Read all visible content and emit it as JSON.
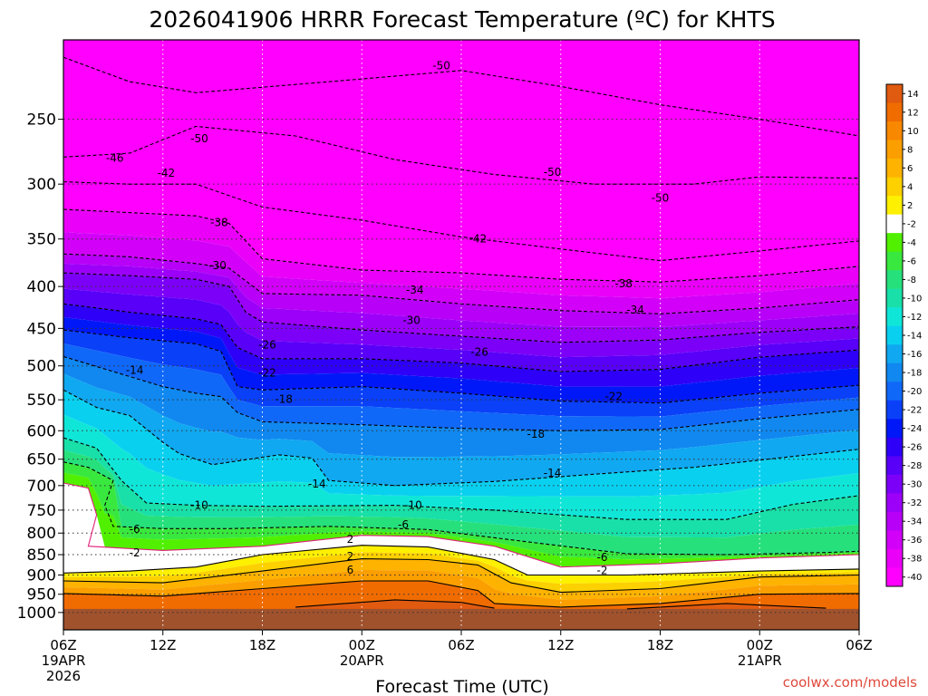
{
  "chart_data": {
    "type": "heatmap",
    "title": "2026041906 HRRR Forecast Temperature (ºC) for KHTS",
    "xlabel": "Forecast Time (UTC)",
    "ylabel": "",
    "y_scale": "log",
    "ylim": [
      1050,
      200
    ],
    "xlim_hours": [
      0,
      48
    ],
    "x_ticks": [
      {
        "hour": 0,
        "label": "06Z",
        "date1": "19APR",
        "date2": "2026"
      },
      {
        "hour": 6,
        "label": "12Z"
      },
      {
        "hour": 12,
        "label": "18Z"
      },
      {
        "hour": 18,
        "label": "00Z",
        "date1": "20APR"
      },
      {
        "hour": 24,
        "label": "06Z"
      },
      {
        "hour": 30,
        "label": "12Z"
      },
      {
        "hour": 36,
        "label": "18Z"
      },
      {
        "hour": 42,
        "label": "00Z",
        "date1": "21APR"
      },
      {
        "hour": 48,
        "label": "06Z"
      }
    ],
    "y_ticks": [
      250,
      300,
      350,
      400,
      450,
      500,
      550,
      600,
      650,
      700,
      750,
      800,
      850,
      900,
      950,
      1000
    ],
    "grid": true,
    "ground_level_hpa": 990,
    "colorbar": {
      "placement": "right",
      "labels": [
        "14",
        "12",
        "10",
        "8",
        "6",
        "4",
        "2",
        "-2",
        "-4",
        "-6",
        "-8",
        "-10",
        "-12",
        "-14",
        "-16",
        "-18",
        "-20",
        "-22",
        "-24",
        "-26",
        "-28",
        "-30",
        "-32",
        "-34",
        "-36",
        "-38",
        "-40"
      ],
      "colors": [
        "#e05a10",
        "#f06c00",
        "#f88800",
        "#fb9e00",
        "#fdb300",
        "#fdd000",
        "#fdf000",
        "#ffffff",
        "#50f000",
        "#39e83e",
        "#26e07c",
        "#18e0a8",
        "#10e6d8",
        "#0ad0f0",
        "#10a8f0",
        "#1088f0",
        "#1068f8",
        "#0a40f8",
        "#0018f8",
        "#2e00f8",
        "#5800f8",
        "#7c00f8",
        "#9c00f8",
        "#b800f8",
        "#d200f8",
        "#ea00f8",
        "#ff00ff"
      ]
    },
    "isotherms": [
      {
        "value": -50,
        "points": [
          [
            0,
            210
          ],
          [
            4,
            225
          ],
          [
            8,
            232
          ],
          [
            16,
            225
          ],
          [
            24,
            218
          ],
          [
            30,
            228
          ],
          [
            36,
            240
          ],
          [
            42,
            250
          ],
          [
            48,
            262
          ]
        ]
      },
      {
        "value": -46,
        "points": [
          [
            0,
            278
          ],
          [
            4,
            275
          ],
          [
            8,
            255
          ],
          [
            14,
            262
          ],
          [
            20,
            280
          ],
          [
            26,
            292
          ],
          [
            32,
            300
          ],
          [
            38,
            300
          ],
          [
            42,
            294
          ],
          [
            48,
            295
          ]
        ]
      },
      {
        "value": -42,
        "points": [
          [
            0,
            298
          ],
          [
            4,
            300
          ],
          [
            8,
            300
          ],
          [
            12,
            320
          ],
          [
            18,
            332
          ],
          [
            24,
            348
          ],
          [
            30,
            360
          ],
          [
            36,
            372
          ],
          [
            42,
            362
          ],
          [
            48,
            352
          ]
        ]
      },
      {
        "value": -38,
        "points": [
          [
            0,
            322
          ],
          [
            4,
            325
          ],
          [
            8,
            328
          ],
          [
            10,
            335
          ],
          [
            12,
            370
          ],
          [
            18,
            382
          ],
          [
            24,
            385
          ],
          [
            30,
            392
          ],
          [
            36,
            395
          ],
          [
            42,
            388
          ],
          [
            48,
            378
          ]
        ]
      },
      {
        "value": -34,
        "points": [
          [
            0,
            365
          ],
          [
            4,
            368
          ],
          [
            8,
            375
          ],
          [
            10,
            380
          ],
          [
            12,
            408
          ],
          [
            18,
            410
          ],
          [
            24,
            420
          ],
          [
            30,
            428
          ],
          [
            36,
            432
          ],
          [
            42,
            425
          ],
          [
            48,
            415
          ]
        ]
      },
      {
        "value": -30,
        "points": [
          [
            0,
            385
          ],
          [
            4,
            388
          ],
          [
            8,
            392
          ],
          [
            10,
            400
          ],
          [
            11,
            430
          ],
          [
            12,
            442
          ],
          [
            18,
            452
          ],
          [
            24,
            460
          ],
          [
            30,
            468
          ],
          [
            36,
            465
          ],
          [
            42,
            455
          ],
          [
            48,
            448
          ]
        ]
      },
      {
        "value": -26,
        "points": [
          [
            0,
            420
          ],
          [
            4,
            430
          ],
          [
            8,
            438
          ],
          [
            9.5,
            445
          ],
          [
            10.5,
            475
          ],
          [
            12,
            490
          ],
          [
            18,
            490
          ],
          [
            24,
            496
          ],
          [
            30,
            508
          ],
          [
            36,
            505
          ],
          [
            42,
            488
          ],
          [
            48,
            478
          ]
        ]
      },
      {
        "value": -22,
        "points": [
          [
            0,
            452
          ],
          [
            4,
            462
          ],
          [
            8,
            470
          ],
          [
            9.5,
            480
          ],
          [
            10.5,
            530
          ],
          [
            12,
            535
          ],
          [
            18,
            530
          ],
          [
            24,
            540
          ],
          [
            30,
            552
          ],
          [
            36,
            555
          ],
          [
            42,
            540
          ],
          [
            48,
            528
          ]
        ]
      },
      {
        "value": -18,
        "points": [
          [
            0,
            487
          ],
          [
            3,
            508
          ],
          [
            6,
            530
          ],
          [
            8,
            540
          ],
          [
            9.5,
            545
          ],
          [
            10.5,
            570
          ],
          [
            12,
            585
          ],
          [
            18,
            590
          ],
          [
            24,
            596
          ],
          [
            30,
            600
          ],
          [
            36,
            598
          ],
          [
            42,
            580
          ],
          [
            48,
            565
          ]
        ]
      },
      {
        "value": -14,
        "points": [
          [
            0,
            535
          ],
          [
            2,
            562
          ],
          [
            4,
            575
          ],
          [
            6,
            620
          ],
          [
            7,
            640
          ],
          [
            9,
            660
          ],
          [
            13,
            642
          ],
          [
            15,
            648
          ],
          [
            16,
            690
          ],
          [
            20,
            700
          ],
          [
            26,
            692
          ],
          [
            32,
            678
          ],
          [
            38,
            665
          ],
          [
            44,
            645
          ],
          [
            48,
            632
          ]
        ]
      },
      {
        "value": -10,
        "points": [
          [
            0,
            612
          ],
          [
            2,
            630
          ],
          [
            3.5,
            690
          ],
          [
            5,
            735
          ],
          [
            8,
            740
          ],
          [
            12,
            742
          ],
          [
            20,
            740
          ],
          [
            26,
            750
          ],
          [
            34,
            770
          ],
          [
            40,
            770
          ],
          [
            44,
            738
          ],
          [
            48,
            720
          ]
        ]
      },
      {
        "value": -6,
        "points": [
          [
            0,
            655
          ],
          [
            1.5,
            665
          ],
          [
            3,
            690
          ],
          [
            2.5,
            740
          ],
          [
            3,
            785
          ],
          [
            6,
            790
          ],
          [
            10,
            790
          ],
          [
            16,
            785
          ],
          [
            22,
            792
          ],
          [
            28,
            820
          ],
          [
            34,
            848
          ],
          [
            40,
            850
          ],
          [
            46,
            845
          ],
          [
            48,
            842
          ]
        ]
      },
      {
        "value": -2,
        "points": [
          [
            0,
            695
          ],
          [
            1.5,
            705
          ],
          [
            2,
            760
          ],
          [
            1.5,
            830
          ],
          [
            6,
            840
          ],
          [
            12,
            830
          ],
          [
            18,
            805
          ],
          [
            22,
            808
          ],
          [
            26,
            830
          ],
          [
            30,
            880
          ],
          [
            36,
            872
          ],
          [
            42,
            858
          ],
          [
            48,
            850
          ]
        ]
      },
      {
        "value": 2,
        "points": [
          [
            0,
            895
          ],
          [
            4,
            890
          ],
          [
            8,
            880
          ],
          [
            12,
            850
          ],
          [
            18,
            828
          ],
          [
            22,
            832
          ],
          [
            26,
            862
          ],
          [
            28,
            900
          ],
          [
            34,
            900
          ],
          [
            42,
            890
          ],
          [
            48,
            885
          ]
        ]
      },
      {
        "value": 6,
        "points": [
          [
            0,
            915
          ],
          [
            6,
            920
          ],
          [
            12,
            890
          ],
          [
            18,
            860
          ],
          [
            22,
            862
          ],
          [
            25,
            875
          ],
          [
            27,
            920
          ],
          [
            30,
            945
          ],
          [
            36,
            935
          ],
          [
            42,
            905
          ],
          [
            48,
            900
          ]
        ]
      },
      {
        "value": 10,
        "points": [
          [
            0,
            948
          ],
          [
            6,
            955
          ],
          [
            12,
            935
          ],
          [
            18,
            915
          ],
          [
            22,
            915
          ],
          [
            25,
            940
          ],
          [
            26,
            975
          ],
          [
            30,
            985
          ],
          [
            36,
            975
          ],
          [
            42,
            950
          ],
          [
            48,
            948
          ]
        ]
      },
      {
        "value": 14,
        "points": [
          [
            14,
            985
          ],
          [
            20,
            965
          ],
          [
            24,
            972
          ],
          [
            26,
            988
          ]
        ]
      },
      {
        "value": 14,
        "points": [
          [
            34,
            990
          ],
          [
            40,
            975
          ],
          [
            46,
            988
          ]
        ]
      }
    ],
    "contour_labels": [
      {
        "text": "-50",
        "hour": 22.8,
        "hpa": 215
      },
      {
        "text": "-50",
        "hour": 8.2,
        "hpa": 264
      },
      {
        "text": "-50",
        "hour": 29.5,
        "hpa": 290
      },
      {
        "text": "-50",
        "hour": 36.0,
        "hpa": 312
      },
      {
        "text": "-46",
        "hour": 3.1,
        "hpa": 279
      },
      {
        "text": "-42",
        "hour": 6.2,
        "hpa": 291
      },
      {
        "text": "-42",
        "hour": 25.0,
        "hpa": 350
      },
      {
        "text": "-38",
        "hour": 9.4,
        "hpa": 334
      },
      {
        "text": "-38",
        "hour": 33.8,
        "hpa": 397
      },
      {
        "text": "-34",
        "hour": 21.2,
        "hpa": 404
      },
      {
        "text": "-34",
        "hour": 34.5,
        "hpa": 427
      },
      {
        "text": "-30",
        "hour": 9.3,
        "hpa": 377
      },
      {
        "text": "-30",
        "hour": 21.0,
        "hpa": 440
      },
      {
        "text": "-26",
        "hour": 12.3,
        "hpa": 471
      },
      {
        "text": "-26",
        "hour": 25.1,
        "hpa": 481
      },
      {
        "text": "-22",
        "hour": 12.3,
        "hpa": 510
      },
      {
        "text": "-22",
        "hour": 33.2,
        "hpa": 545
      },
      {
        "text": "-18",
        "hour": 13.3,
        "hpa": 549
      },
      {
        "text": "-18",
        "hour": 28.5,
        "hpa": 606
      },
      {
        "text": "-14",
        "hour": 4.3,
        "hpa": 506
      },
      {
        "text": "-14",
        "hour": 15.3,
        "hpa": 697
      },
      {
        "text": "-14",
        "hour": 29.5,
        "hpa": 676
      },
      {
        "text": "-10",
        "hour": 8.2,
        "hpa": 740
      },
      {
        "text": "-10",
        "hour": 21.1,
        "hpa": 740
      },
      {
        "text": "-6",
        "hour": 4.3,
        "hpa": 791
      },
      {
        "text": "-6",
        "hour": 20.5,
        "hpa": 781
      },
      {
        "text": "-6",
        "hour": 32.5,
        "hpa": 856
      },
      {
        "text": "-2",
        "hour": 4.3,
        "hpa": 846
      },
      {
        "text": "-2",
        "hour": 32.5,
        "hpa": 889
      },
      {
        "text": "2",
        "hour": 17.3,
        "hpa": 814
      },
      {
        "text": "2",
        "hour": 17.3,
        "hpa": 854
      },
      {
        "text": "6",
        "hour": 17.3,
        "hpa": 888
      }
    ]
  },
  "credit": "coolwx.com/models"
}
